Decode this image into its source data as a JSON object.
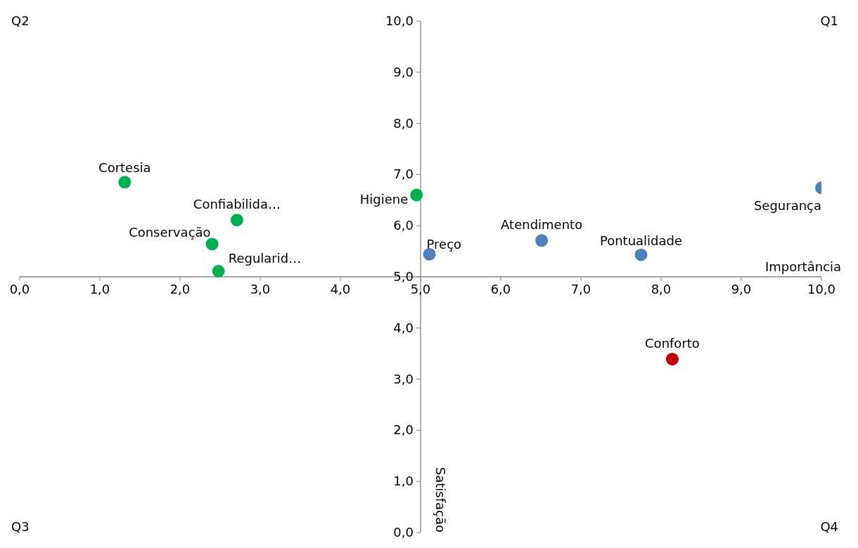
{
  "chart_data": {
    "type": "scatter",
    "xlabel": "Importância",
    "ylabel": "Satisfação",
    "xlim": [
      0,
      10
    ],
    "ylim": [
      0,
      10
    ],
    "xticks": [
      {
        "value": 0,
        "label": "0,0"
      },
      {
        "value": 1,
        "label": "1,0"
      },
      {
        "value": 2,
        "label": "2,0"
      },
      {
        "value": 3,
        "label": "3,0"
      },
      {
        "value": 4,
        "label": "4,0"
      },
      {
        "value": 5,
        "label": "5,0"
      },
      {
        "value": 6,
        "label": "6,0"
      },
      {
        "value": 7,
        "label": "7,0"
      },
      {
        "value": 8,
        "label": "8,0"
      },
      {
        "value": 9,
        "label": "9,0"
      },
      {
        "value": 10,
        "label": "10,0"
      }
    ],
    "yticks": [
      {
        "value": 0,
        "label": "0,0"
      },
      {
        "value": 1,
        "label": "1,0"
      },
      {
        "value": 2,
        "label": "2,0"
      },
      {
        "value": 3,
        "label": "3,0"
      },
      {
        "value": 4,
        "label": "4,0"
      },
      {
        "value": 5,
        "label": "5,0"
      },
      {
        "value": 6,
        "label": "6,0"
      },
      {
        "value": 7,
        "label": "7,0"
      },
      {
        "value": 8,
        "label": "8,0"
      },
      {
        "value": 9,
        "label": "9,0"
      },
      {
        "value": 10,
        "label": "10,0"
      }
    ],
    "series": [
      {
        "color": "#00b050",
        "x": [
          1.31,
          2.71,
          2.4,
          2.48,
          4.95
        ],
        "values": [
          6.85,
          6.11,
          5.64,
          5.11,
          6.6
        ]
      },
      {
        "color": "#4f81bd",
        "x": [
          5.11,
          6.51,
          7.75,
          10.0
        ],
        "values": [
          5.44,
          5.71,
          5.43,
          6.74
        ]
      },
      {
        "color": "#c00000",
        "x": [
          8.14
        ],
        "values": [
          3.39
        ]
      }
    ],
    "annotations": [
      {
        "text": "Cortesia",
        "x": 1.31,
        "y": 6.85
      },
      {
        "text": "Confiabilida…",
        "x": 2.71,
        "y": 6.11
      },
      {
        "text": "Conservação",
        "x": 2.4,
        "y": 5.64
      },
      {
        "text": "Regularid…",
        "x": 2.48,
        "y": 5.11
      },
      {
        "text": "Higiene",
        "x": 4.95,
        "y": 6.6
      },
      {
        "text": "Preço",
        "x": 5.11,
        "y": 5.44
      },
      {
        "text": "Atendimento",
        "x": 6.51,
        "y": 5.71
      },
      {
        "text": "Pontualidade",
        "x": 7.75,
        "y": 5.43
      },
      {
        "text": "Segurança",
        "x": 10.0,
        "y": 6.74
      },
      {
        "text": "Conforto",
        "x": 8.14,
        "y": 3.39
      },
      "Q1",
      "Q2",
      "Q3",
      "Q4"
    ],
    "marker": "circle",
    "grid": false,
    "legend": false
  }
}
